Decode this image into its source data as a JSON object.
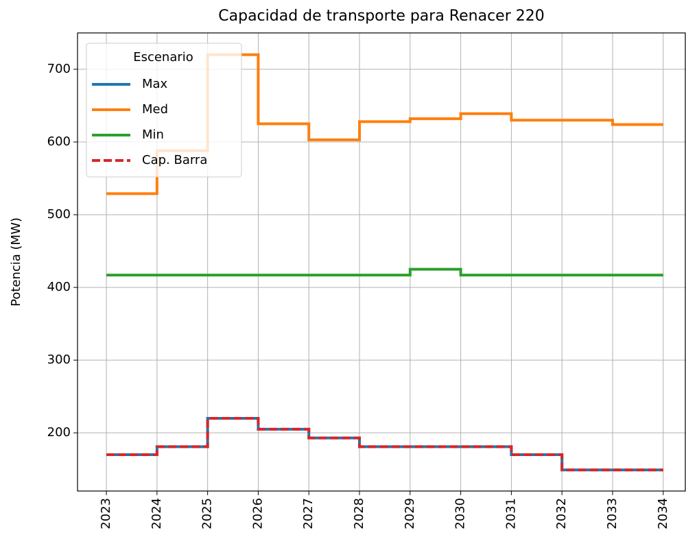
{
  "chart_data": {
    "type": "step",
    "title": "Capacidad de transporte para Renacer 220",
    "ylabel": "Potencia (MW)",
    "legend_title": "Escenario",
    "legend": "upper left",
    "grid": true,
    "x": [
      2023,
      2024,
      2025,
      2026,
      2027,
      2028,
      2029,
      2030,
      2031,
      2032,
      2033,
      2034
    ],
    "xlim": [
      2022.43,
      2034.45
    ],
    "xticks": [
      2023,
      2024,
      2025,
      2026,
      2027,
      2028,
      2029,
      2030,
      2031,
      2032,
      2033,
      2034
    ],
    "ylim": [
      120,
      750
    ],
    "yticks": [
      200,
      300,
      400,
      500,
      600,
      700
    ],
    "series": [
      {
        "name": "Max",
        "color": "#1f77b4",
        "linestyle": "solid",
        "values": [
          170,
          181,
          220,
          205,
          193,
          181,
          181,
          181,
          170,
          149,
          149,
          149
        ]
      },
      {
        "name": "Med",
        "color": "#ff7f0e",
        "linestyle": "solid",
        "values": [
          529,
          588,
          720,
          625,
          603,
          628,
          632,
          639,
          630,
          630,
          624,
          624
        ]
      },
      {
        "name": "Min",
        "color": "#2ca02c",
        "linestyle": "solid",
        "values": [
          417,
          417,
          417,
          417,
          417,
          417,
          425,
          417,
          417,
          417,
          417,
          417
        ]
      },
      {
        "name": "Cap. Barra",
        "color": "#d62728",
        "linestyle": "dashed",
        "values": [
          170,
          181,
          220,
          205,
          193,
          181,
          181,
          181,
          170,
          149,
          149,
          149
        ]
      }
    ]
  }
}
